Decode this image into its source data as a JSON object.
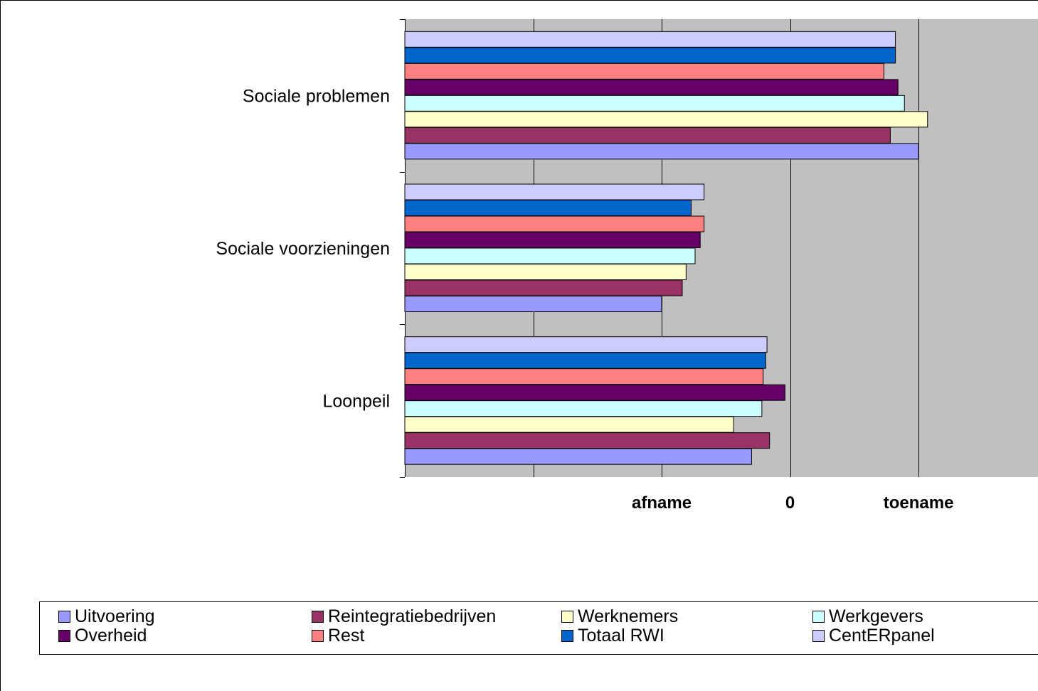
{
  "chart_data": {
    "type": "bar",
    "orientation": "horizontal",
    "categories": [
      "Sociale problemen",
      "Sociale voorzieningen",
      "Loonpeil"
    ],
    "series": [
      {
        "name": "Uitvoering",
        "color": "#9999ff",
        "values": [
          1.0,
          -1.0,
          -0.3
        ]
      },
      {
        "name": "Reintegratiebedrijven",
        "color": "#993366",
        "values": [
          0.78,
          -0.84,
          -0.16
        ]
      },
      {
        "name": "Werknemers",
        "color": "#ffffcc",
        "values": [
          1.07,
          -0.81,
          -0.44
        ]
      },
      {
        "name": "Werkgevers",
        "color": "#ccffff",
        "values": [
          0.89,
          -0.74,
          -0.22
        ]
      },
      {
        "name": "Overheid",
        "color": "#660066",
        "values": [
          0.84,
          -0.7,
          -0.04
        ]
      },
      {
        "name": "Rest",
        "color": "#ff8080",
        "values": [
          0.73,
          -0.67,
          -0.21
        ]
      },
      {
        "name": "Totaal RWI",
        "color": "#0066cc",
        "values": [
          0.82,
          -0.77,
          -0.19
        ]
      },
      {
        "name": "CentERpanel",
        "color": "#ccccff",
        "values": [
          0.82,
          -0.67,
          -0.18
        ]
      }
    ],
    "x_tick_labels": [
      {
        "value": -1,
        "label": "afname"
      },
      {
        "value": 0,
        "label": "0"
      },
      {
        "value": 1,
        "label": "toename"
      }
    ],
    "xlim": [
      -3,
      1.93
    ],
    "grid": true,
    "plot_background": "#c0c0c0",
    "legend_position": "bottom"
  }
}
